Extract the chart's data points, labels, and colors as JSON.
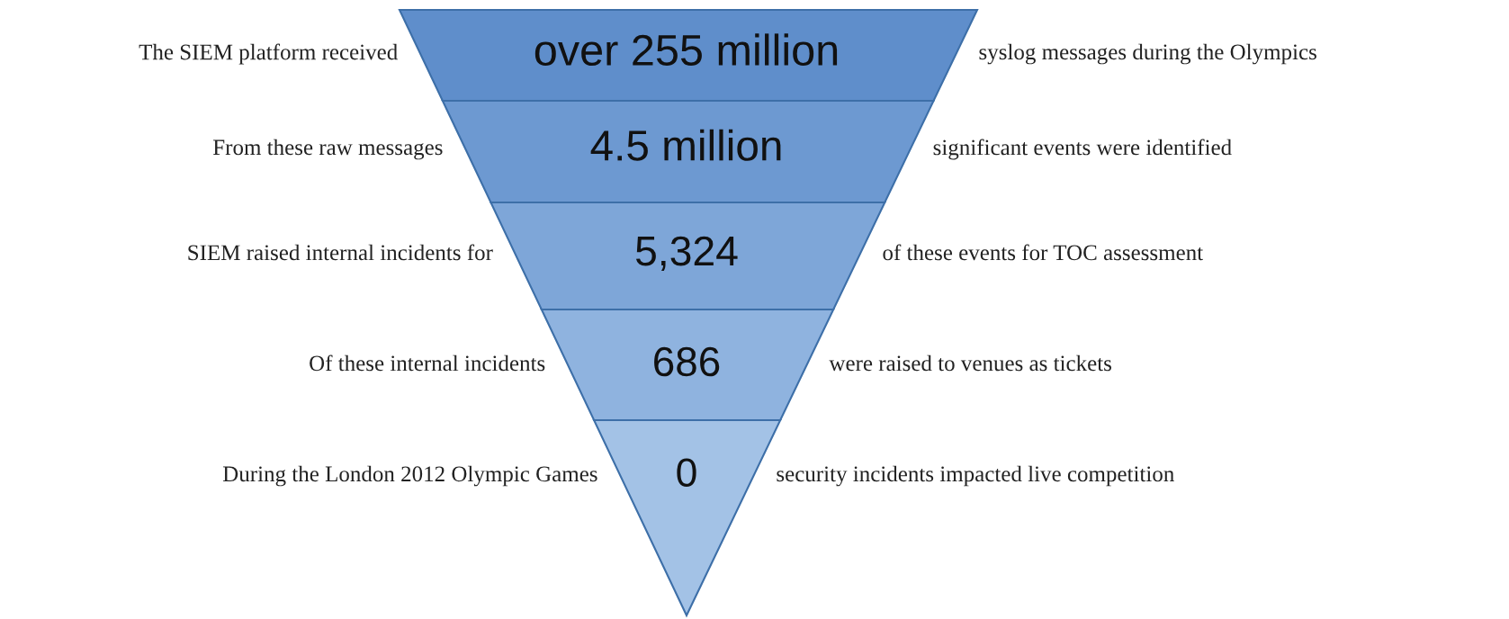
{
  "chart_data": {
    "type": "other",
    "categories": [
      "The SIEM platform received",
      "From these raw messages",
      "SIEM raised internal incidents for",
      "Of these internal incidents",
      "During the London 2012 Olympic Games"
    ],
    "values": [
      255000000,
      4500000,
      5324,
      686,
      0
    ],
    "value_labels": [
      "over 255 million",
      "4.5 million",
      "5,324",
      "686",
      "0"
    ],
    "annotations": [
      "syslog messages during the Olympics",
      "significant events were identified",
      "of these events for TOC assessment",
      "were raised to venues as tickets",
      "security incidents impacted live competition"
    ],
    "colors": [
      "#5f8ecb",
      "#6d99d1",
      "#7ea6d8",
      "#8fb3df",
      "#a3c2e6"
    ]
  }
}
